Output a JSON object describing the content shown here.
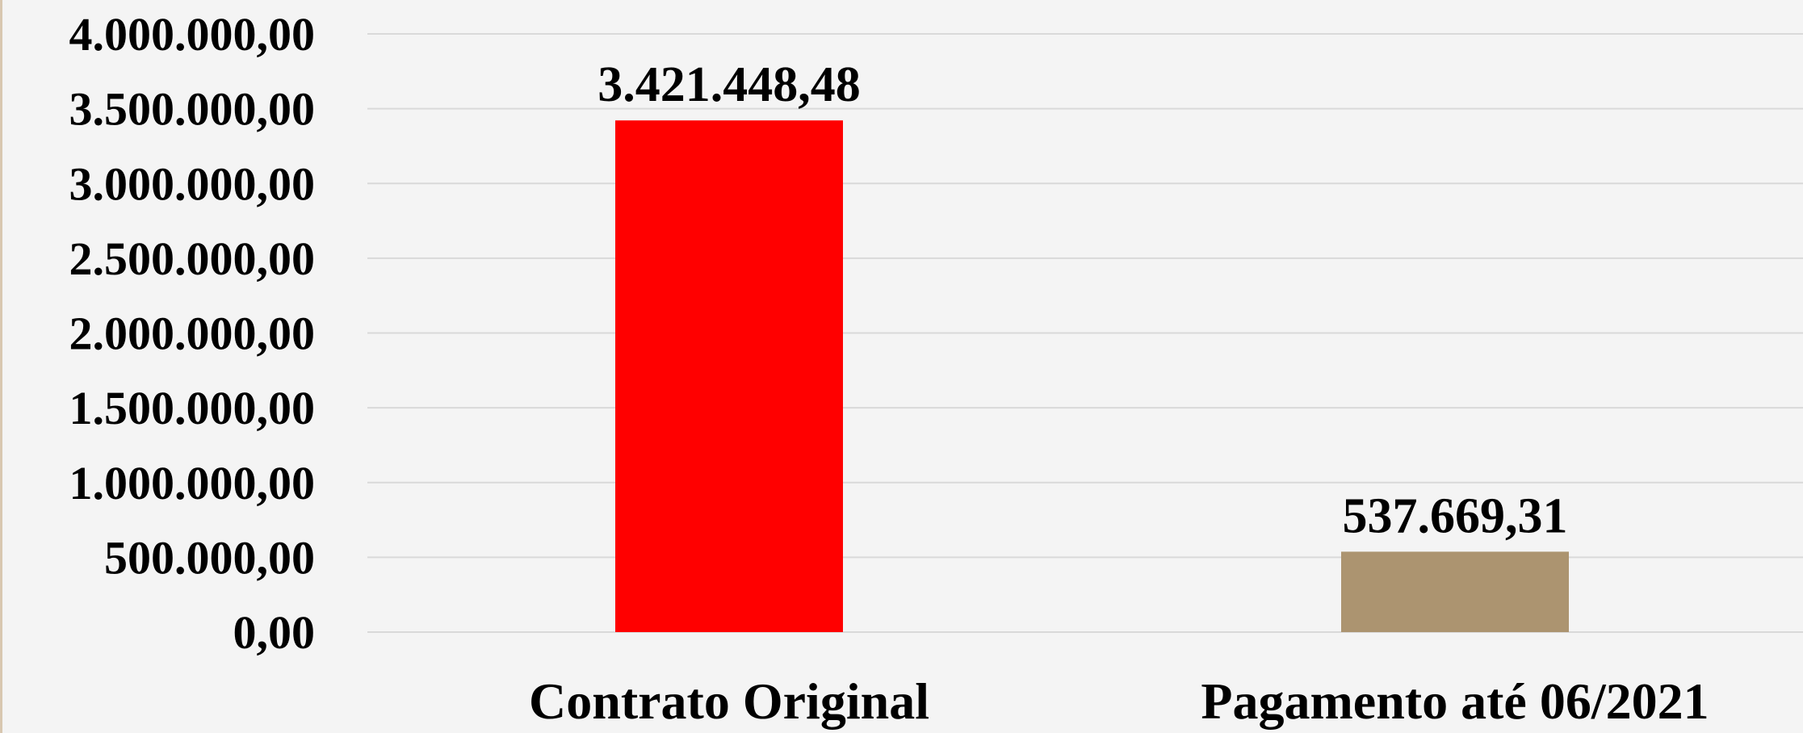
{
  "chart_data": {
    "type": "bar",
    "categories": [
      "Contrato Original",
      "Pagamento até 06/2021"
    ],
    "values": [
      3421448.48,
      537669.31
    ],
    "data_labels": [
      "3.421.448,48",
      "537.669,31"
    ],
    "bar_colors": [
      "#ff0000",
      "#ac9470"
    ],
    "ylim": [
      0,
      4000000
    ],
    "y_ticks": [
      0,
      500000,
      1000000,
      1500000,
      2000000,
      2500000,
      3000000,
      3500000,
      4000000
    ],
    "y_tick_labels": [
      "0,00",
      "500.000,00",
      "1.000.000,00",
      "1.500.000,00",
      "2.000.000,00",
      "2.500.000,00",
      "3.000.000,00",
      "3.500.000,00",
      "4.000.000,00"
    ],
    "grid": true,
    "legend": "none",
    "title": "",
    "xlabel": "",
    "ylabel": ""
  },
  "colors": {
    "background": "#f4f4f4",
    "grid": "#d9d9d9",
    "text": "#000000"
  }
}
